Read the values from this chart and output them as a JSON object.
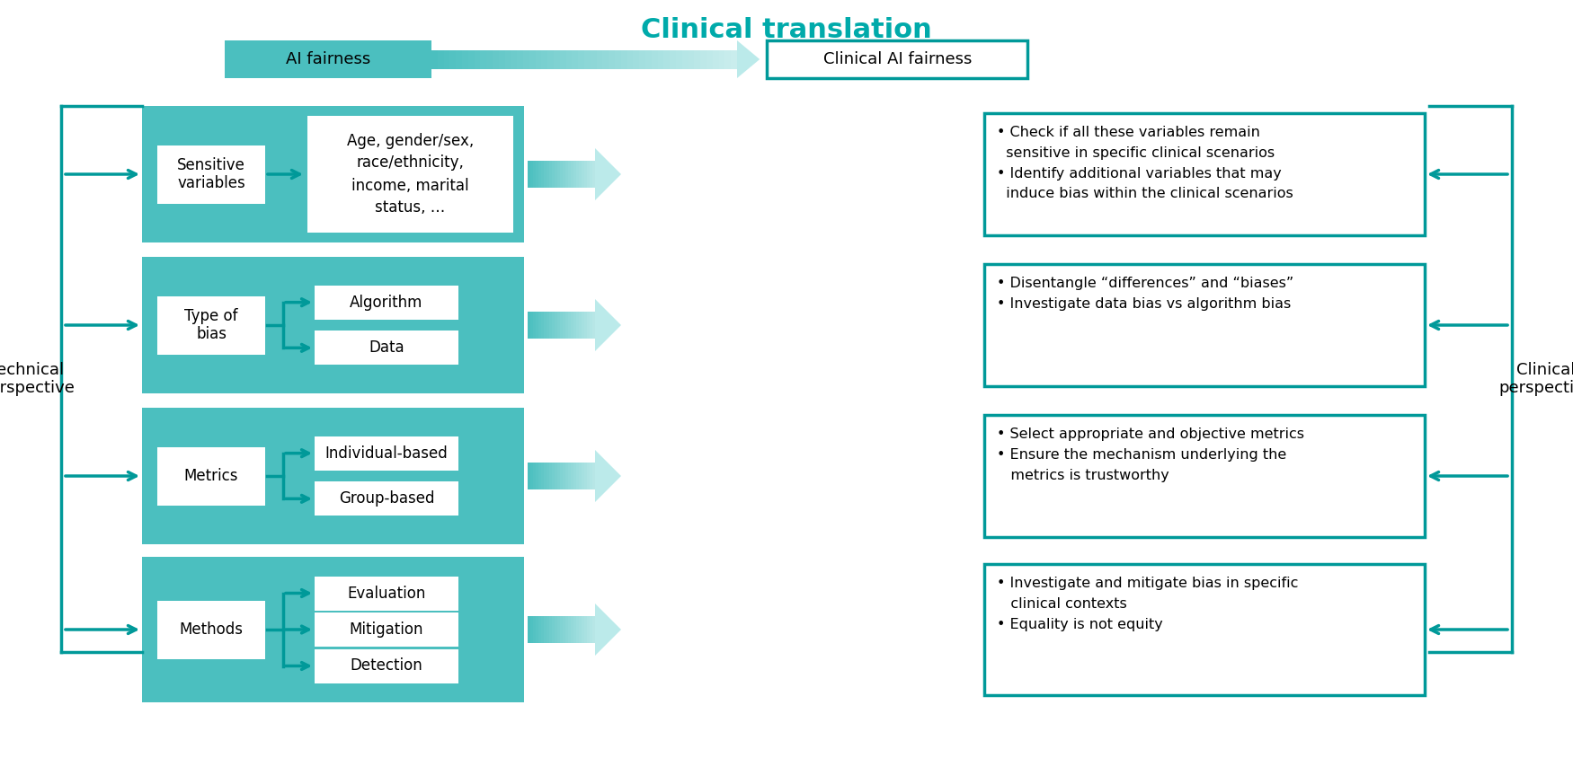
{
  "title": "Clinical translation",
  "title_color": "#00AAAA",
  "bg_color": "#FFFFFF",
  "teal": "#4BBFBF",
  "teal_dark": "#009999",
  "teal_light": "#AAE0E0",
  "white": "#FFFFFF",
  "black": "#000000",
  "tech_label": "Technical\nperspective",
  "clinical_label": "Clinical\nperspective",
  "ai_fairness_label": "AI fairness",
  "clinical_ai_label": "Clinical AI fairness",
  "rows": [
    {
      "left_label": "Sensitive\nvariables",
      "has_sub": false,
      "center_text": "Age, gender/sex,\nrace/ethnicity,\nincome, marital\nstatus, …",
      "right_text": "• Check if all these variables remain\n  sensitive in specific clinical scenarios\n• Identify additional variables that may\n  induce bias within the clinical scenarios"
    },
    {
      "left_label": "Type of\nbias",
      "has_sub": true,
      "sub_labels": [
        "Data",
        "Algorithm"
      ],
      "right_text": "• Disentangle “differences” and “biases”\n• Investigate data bias vs algorithm bias"
    },
    {
      "left_label": "Metrics",
      "has_sub": true,
      "sub_labels": [
        "Group-based",
        "Individual-based"
      ],
      "right_text": "• Select appropriate and objective metrics\n• Ensure the mechanism underlying the\n   metrics is trustworthy"
    },
    {
      "left_label": "Methods",
      "has_sub": true,
      "sub_labels": [
        "Detection",
        "Mitigation",
        "Evaluation"
      ],
      "right_text": "• Investigate and mitigate bias in specific\n   clinical contexts\n• Equality is not equity"
    }
  ]
}
